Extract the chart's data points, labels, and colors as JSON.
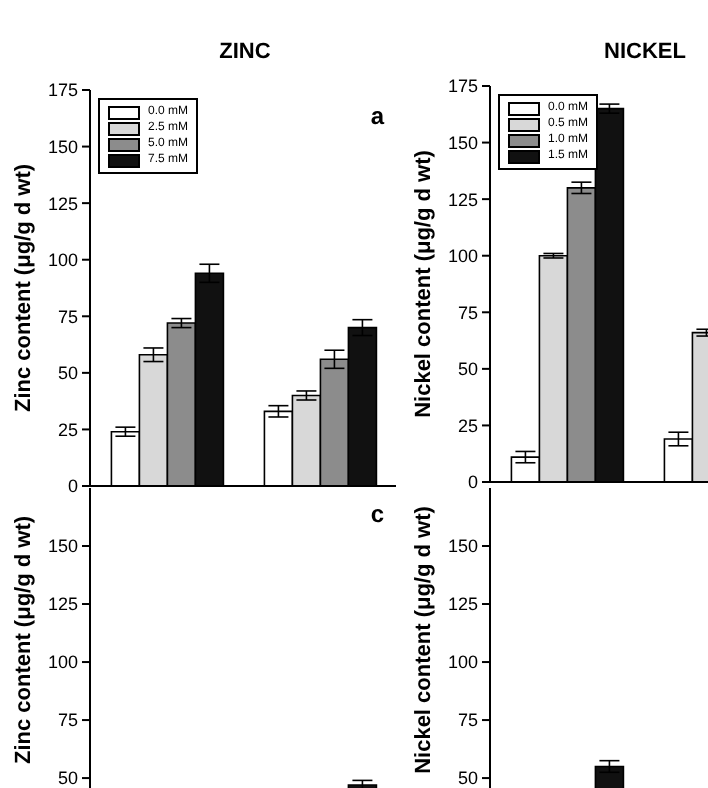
{
  "chart_data": [
    {
      "type": "bar",
      "title": "ZINC",
      "ylabel": "Zinc content (μg/g d wt)",
      "categories": [
        null,
        null
      ],
      "ylim": [
        0,
        175
      ],
      "yticks": [
        0,
        25,
        50,
        75,
        100,
        125,
        150,
        175
      ],
      "tick_labels": "y",
      "legend": "top left",
      "annotations": [
        "a"
      ],
      "series": [
        {
          "name": "0.0 mM",
          "color": "#ffffff",
          "values": [
            24,
            33
          ],
          "errors": [
            2,
            2.5
          ]
        },
        {
          "name": "2.5 mM",
          "color": "#d8d8d8",
          "values": [
            58,
            40
          ],
          "errors": [
            3,
            2
          ]
        },
        {
          "name": "5.0 mM",
          "color": "#8c8c8c",
          "values": [
            72,
            56
          ],
          "errors": [
            2,
            4
          ]
        },
        {
          "name": "7.5 mM",
          "color": "#111111",
          "values": [
            94,
            70
          ],
          "errors": [
            4,
            3.5
          ]
        }
      ]
    },
    {
      "type": "bar",
      "title": "NICKEL",
      "ylabel": "Nickel content (μg/g d wt)",
      "categories": [
        null,
        null
      ],
      "ylim": [
        0,
        175
      ],
      "yticks": [
        0,
        25,
        50,
        75,
        100,
        125,
        150,
        175
      ],
      "tick_labels": "y",
      "legend": "top left",
      "series": [
        {
          "name": "0.0 mM",
          "color": "#ffffff",
          "values": [
            11,
            19
          ],
          "errors": [
            2.5,
            3
          ]
        },
        {
          "name": "0.5 mM",
          "color": "#d8d8d8",
          "values": [
            100,
            66
          ],
          "errors": [
            1,
            1.5
          ]
        },
        {
          "name": "1.0 mM",
          "color": "#8c8c8c",
          "values": [
            130,
            null
          ],
          "errors": [
            2.5,
            null
          ]
        },
        {
          "name": "1.5 mM",
          "color": "#111111",
          "values": [
            165,
            null
          ],
          "errors": [
            2,
            null
          ]
        }
      ]
    },
    {
      "type": "bar",
      "ylabel": "Zinc content (μg/g d wt)",
      "categories": [
        null,
        null
      ],
      "ylim": [
        44,
        175
      ],
      "yticks": [
        50,
        75,
        100,
        125,
        150
      ],
      "tick_labels": "y",
      "annotations": [
        "c"
      ],
      "series": [
        {
          "color": "#ffffff",
          "values": [
            null,
            null
          ]
        },
        {
          "color": "#d8d8d8",
          "values": [
            null,
            null
          ]
        },
        {
          "color": "#8c8c8c",
          "values": [
            null,
            null
          ]
        },
        {
          "color": "#111111",
          "values": [
            null,
            47
          ],
          "errors": [
            null,
            2
          ]
        }
      ]
    },
    {
      "type": "bar",
      "ylabel": "Nickel content (μg/g d wt)",
      "categories": [
        null,
        null
      ],
      "ylim": [
        44,
        175
      ],
      "yticks": [
        50,
        75,
        100,
        125,
        150
      ],
      "tick_labels": "y",
      "series": [
        {
          "color": "#ffffff",
          "values": [
            null,
            null
          ]
        },
        {
          "color": "#d8d8d8",
          "values": [
            null,
            null
          ]
        },
        {
          "color": "#8c8c8c",
          "values": [
            null,
            null
          ]
        },
        {
          "color": "#111111",
          "values": [
            55,
            null
          ],
          "errors": [
            2.5,
            null
          ]
        }
      ]
    }
  ]
}
